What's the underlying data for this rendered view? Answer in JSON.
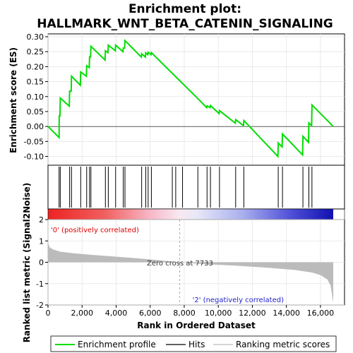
{
  "chart_data": {
    "type": "line",
    "title_line1": "Enrichment plot:",
    "title_line2": "HALLMARK_WNT_BETA_CATENIN_SIGNALING",
    "es_panel": {
      "ylabel": "Enrichment score (ES)",
      "ylim": [
        -0.12,
        0.3
      ],
      "yticks": [
        -0.1,
        -0.05,
        0.0,
        0.05,
        0.1,
        0.15,
        0.2,
        0.25,
        0.3
      ],
      "ytick_labels": [
        "-0.10",
        "-0.05",
        "0.00",
        "0.05",
        "0.10",
        "0.15",
        "0.20",
        "0.25",
        "0.30"
      ],
      "line_color": "#00dd00",
      "profile": [
        [
          0,
          0.0
        ],
        [
          650,
          -0.037
        ],
        [
          660,
          0.035
        ],
        [
          700,
          0.035
        ],
        [
          720,
          0.095
        ],
        [
          1250,
          0.068
        ],
        [
          1270,
          0.118
        ],
        [
          1360,
          0.118
        ],
        [
          1380,
          0.168
        ],
        [
          1900,
          0.138
        ],
        [
          1920,
          0.182
        ],
        [
          2250,
          0.168
        ],
        [
          2270,
          0.203
        ],
        [
          2420,
          0.197
        ],
        [
          2440,
          0.233
        ],
        [
          2500,
          0.233
        ],
        [
          2520,
          0.268
        ],
        [
          3350,
          0.222
        ],
        [
          3370,
          0.253
        ],
        [
          3520,
          0.247
        ],
        [
          3540,
          0.272
        ],
        [
          3950,
          0.253
        ],
        [
          3970,
          0.272
        ],
        [
          4400,
          0.25
        ],
        [
          4420,
          0.262
        ],
        [
          4500,
          0.262
        ],
        [
          4520,
          0.287
        ],
        [
          5480,
          0.232
        ],
        [
          5500,
          0.243
        ],
        [
          5720,
          0.232
        ],
        [
          5740,
          0.246
        ],
        [
          5860,
          0.24
        ],
        [
          5880,
          0.248
        ],
        [
          6050,
          0.24
        ],
        [
          6070,
          0.247
        ],
        [
          8800,
          0.093
        ],
        [
          9320,
          0.063
        ],
        [
          9340,
          0.069
        ],
        [
          9520,
          0.063
        ],
        [
          9540,
          0.07
        ],
        [
          10050,
          0.043
        ],
        [
          10070,
          0.053
        ],
        [
          11000,
          0.011
        ],
        [
          11020,
          0.023
        ],
        [
          11480,
          0.003
        ],
        [
          11500,
          0.02
        ],
        [
          13500,
          -0.1
        ],
        [
          13520,
          -0.055
        ],
        [
          13750,
          -0.068
        ],
        [
          13770,
          -0.025
        ],
        [
          14950,
          -0.095
        ],
        [
          14970,
          -0.033
        ],
        [
          15300,
          -0.053
        ],
        [
          15320,
          0.012
        ],
        [
          15480,
          0.003
        ],
        [
          15500,
          0.072
        ],
        [
          16750,
          0.0
        ]
      ]
    },
    "hits": [
      650,
      720,
      1270,
      1380,
      1920,
      2270,
      2440,
      2520,
      3370,
      3540,
      3970,
      4420,
      4520,
      5500,
      5740,
      5880,
      6070,
      7300,
      7500,
      7900,
      8800,
      9340,
      9540,
      10070,
      11020,
      11500,
      13520,
      13770,
      14970,
      15320,
      15500
    ],
    "rank_panel": {
      "ylabel": "Ranked list metric (Signal2Noise)",
      "xlabel": "Rank in Ordered Dataset",
      "ylim": [
        -2,
        2
      ],
      "yticks": [
        -2,
        -1,
        0,
        1,
        2
      ],
      "ytick_labels": [
        "-2",
        "-1",
        "0",
        "1",
        "2"
      ],
      "xlim": [
        0,
        16750
      ],
      "xticks": [
        0,
        2000,
        4000,
        6000,
        8000,
        10000,
        12000,
        14000,
        16000
      ],
      "xtick_labels": [
        "0",
        "2,000",
        "4,000",
        "6,000",
        "8,000",
        "10,000",
        "12,000",
        "14,000",
        "16,000"
      ],
      "metric_curve": [
        [
          0,
          0.9
        ],
        [
          100,
          0.7
        ],
        [
          300,
          0.6
        ],
        [
          700,
          0.5
        ],
        [
          1500,
          0.42
        ],
        [
          3000,
          0.32
        ],
        [
          5000,
          0.2
        ],
        [
          6500,
          0.1
        ],
        [
          7733,
          0.0
        ],
        [
          9000,
          -0.08
        ],
        [
          11000,
          -0.16
        ],
        [
          13000,
          -0.26
        ],
        [
          14500,
          -0.36
        ],
        [
          15500,
          -0.48
        ],
        [
          16000,
          -0.6
        ],
        [
          16400,
          -0.8
        ],
        [
          16600,
          -1.1
        ],
        [
          16750,
          -1.9
        ]
      ],
      "zero_cross_label": "Zero cross at 7733",
      "zero_cross_rank": 7733,
      "pos_label": "'0' (positively correlated)",
      "neg_label": "'2' (negatively correlated)"
    },
    "legend": {
      "items": [
        {
          "label": "Enrichment profile",
          "color": "#00dd00"
        },
        {
          "label": "Hits",
          "color": "#000000"
        },
        {
          "label": "Ranking metric scores",
          "color": "#bbbbbb"
        }
      ]
    }
  }
}
